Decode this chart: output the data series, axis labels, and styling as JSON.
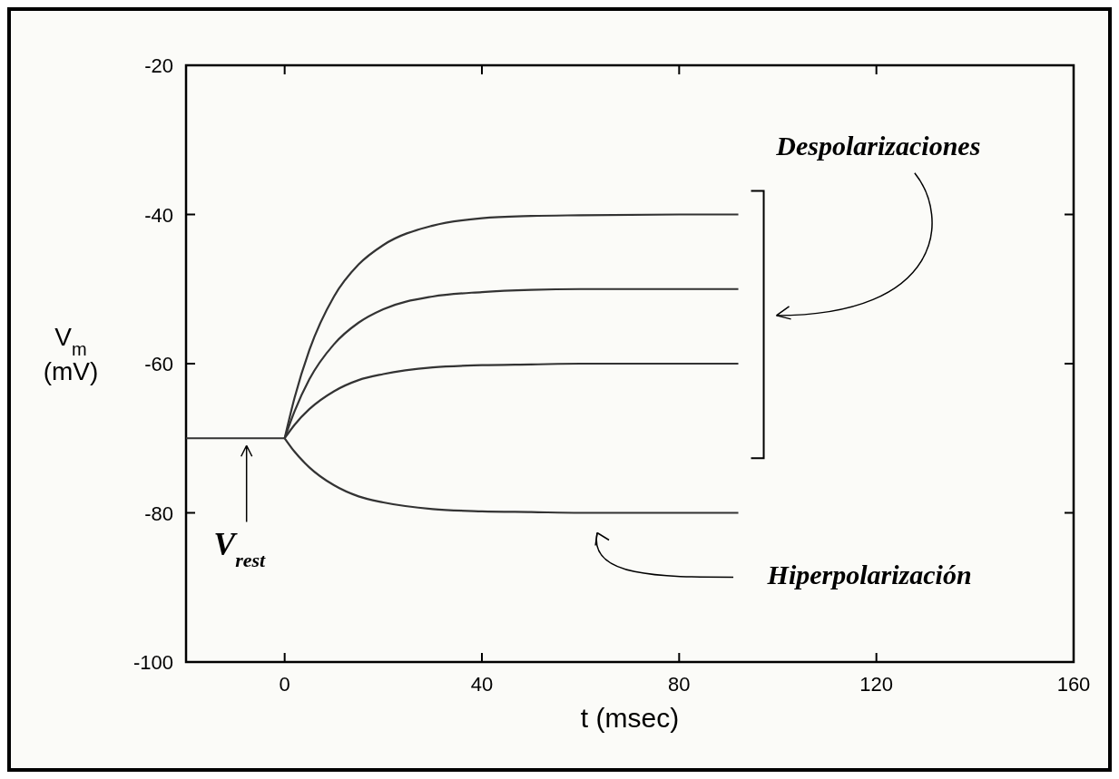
{
  "chart_data": {
    "type": "line",
    "xlabel": "t (msec)",
    "ylabel": "V$_{m}$ (mV)",
    "xlim": [
      -20,
      160
    ],
    "ylim": [
      -100,
      -20
    ],
    "xticks": [
      0,
      40,
      80,
      120,
      160
    ],
    "yticks": [
      -100,
      -80,
      -60,
      -40,
      -20
    ],
    "grid": false,
    "marker": "none",
    "line_style": "solid",
    "series": [
      {
        "color": "#333333",
        "x": [
          -20,
          0
        ],
        "values": [
          -70,
          -70
        ]
      },
      {
        "color": "#333333",
        "x": [
          0,
          2,
          5,
          10,
          15,
          20,
          30,
          40,
          50,
          60,
          80,
          92
        ],
        "values": [
          -70,
          -64.6,
          -58.2,
          -51,
          -46.7,
          -44.1,
          -41.5,
          -40.5,
          -40.2,
          -40.1,
          -40,
          -40
        ]
      },
      {
        "color": "#333333",
        "x": [
          0,
          2,
          5,
          10,
          15,
          20,
          30,
          40,
          50,
          60,
          80,
          92
        ],
        "values": [
          -70,
          -66.4,
          -62.1,
          -57.4,
          -54.5,
          -52.7,
          -51,
          -50.4,
          -50.1,
          -50,
          -50,
          -50
        ]
      },
      {
        "color": "#333333",
        "x": [
          0,
          2,
          5,
          10,
          15,
          20,
          30,
          40,
          50,
          60,
          80,
          92
        ],
        "values": [
          -70,
          -68.2,
          -66.1,
          -63.7,
          -62.2,
          -61.4,
          -60.5,
          -60.2,
          -60.1,
          -60,
          -60,
          -60
        ]
      },
      {
        "color": "#333333",
        "x": [
          0,
          2,
          5,
          10,
          15,
          20,
          30,
          40,
          50,
          60,
          80,
          92
        ],
        "values": [
          -70,
          -71.8,
          -73.9,
          -76.3,
          -77.8,
          -78.6,
          -79.5,
          -79.8,
          -79.9,
          -80,
          -80,
          -80
        ]
      }
    ],
    "annotations": [
      "Despolarizaciones",
      "Hiperpolarización",
      "V$_{rest}$"
    ]
  }
}
